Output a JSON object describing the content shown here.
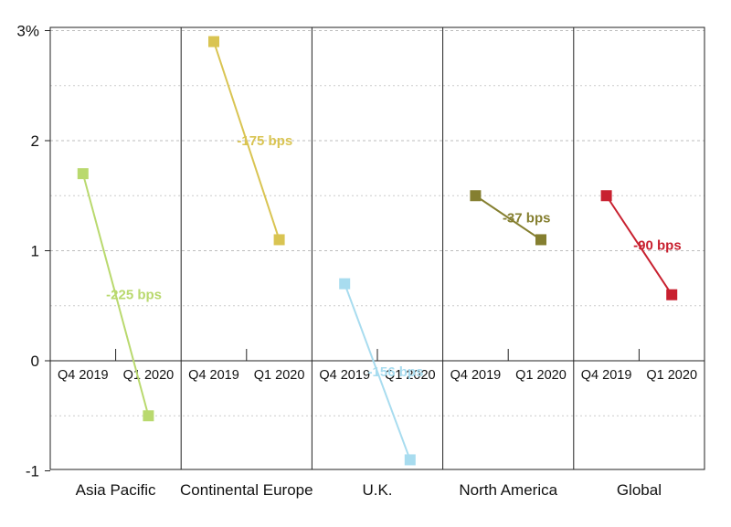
{
  "chart_data": {
    "type": "line",
    "y_tick_labels": [
      "3%",
      "2",
      "1",
      "0",
      "-1"
    ],
    "y_ticks": [
      3,
      2,
      1,
      0,
      -1
    ],
    "ylim": [
      -1,
      3
    ],
    "grid": true,
    "x": [
      "Q4 2019",
      "Q1 2020"
    ],
    "panels": [
      {
        "label": "Asia Pacific",
        "values": [
          1.7,
          -0.5
        ],
        "annotation": "-225 bps",
        "color": "#b9d96e"
      },
      {
        "label": "Continental Europe",
        "values": [
          2.9,
          1.1
        ],
        "annotation": "-175 bps",
        "color": "#d9c452"
      },
      {
        "label": "U.K.",
        "values": [
          0.7,
          -0.9
        ],
        "annotation": "-156 bps",
        "color": "#a8dcef"
      },
      {
        "label": "North America",
        "values": [
          1.5,
          1.1
        ],
        "annotation": "-37 bps",
        "color": "#857f30"
      },
      {
        "label": "Global",
        "values": [
          1.5,
          0.6
        ],
        "annotation": "-90 bps",
        "color": "#c8202f"
      }
    ]
  }
}
